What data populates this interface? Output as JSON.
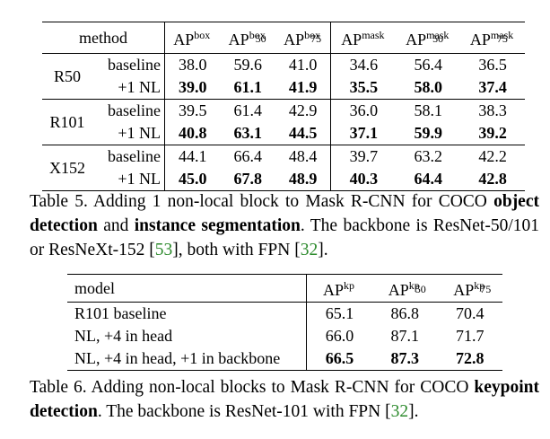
{
  "table5": {
    "header": {
      "method": "method",
      "ap": "AP",
      "box": "box",
      "mask": "mask",
      "s50": "50",
      "s75": "75"
    },
    "groups": [
      {
        "name": "R50",
        "baseline": {
          "label": "baseline",
          "v": [
            "38.0",
            "59.6",
            "41.0",
            "34.6",
            "56.4",
            "36.5"
          ]
        },
        "nl": {
          "label": "+1 NL",
          "v": [
            "39.0",
            "61.1",
            "41.9",
            "35.5",
            "58.0",
            "37.4"
          ]
        }
      },
      {
        "name": "R101",
        "baseline": {
          "label": "baseline",
          "v": [
            "39.5",
            "61.4",
            "42.9",
            "36.0",
            "58.1",
            "38.3"
          ]
        },
        "nl": {
          "label": "+1 NL",
          "v": [
            "40.8",
            "63.1",
            "44.5",
            "37.1",
            "59.9",
            "39.2"
          ]
        }
      },
      {
        "name": "X152",
        "baseline": {
          "label": "baseline",
          "v": [
            "44.1",
            "66.4",
            "48.4",
            "39.7",
            "63.2",
            "42.2"
          ]
        },
        "nl": {
          "label": "+1 NL",
          "v": [
            "45.0",
            "67.8",
            "48.9",
            "40.3",
            "64.4",
            "42.8"
          ]
        }
      }
    ]
  },
  "caption5": {
    "p1": "Table 5. Adding 1 non-local block to Mask R-CNN for COCO ",
    "b1": "object detection",
    "p2": " and ",
    "b2": "instance segmentation",
    "p3": ".  The backbone is ResNet-50/101 or ResNeXt-152 [",
    "c1": "53",
    "p4": "], both with FPN [",
    "c2": "32",
    "p5": "]."
  },
  "table6": {
    "header": {
      "model": "model",
      "ap": "AP",
      "kp": "kp",
      "s50": "50",
      "s75": "75"
    },
    "rows": [
      {
        "model": "R101 baseline",
        "v": [
          "65.1",
          "86.8",
          "70.4"
        ]
      },
      {
        "model": "NL, +4 in head",
        "v": [
          "66.0",
          "87.1",
          "71.7"
        ]
      },
      {
        "model": "NL, +4 in head, +1 in backbone",
        "v": [
          "66.5",
          "87.3",
          "72.8"
        ]
      }
    ]
  },
  "caption6": {
    "p1": "Table 6. Adding non-local blocks to Mask R-CNN for COCO ",
    "b1": "keypoint detection",
    "p2": ". The backbone is ResNet-101 with FPN [",
    "c1": "32",
    "p3": "]."
  }
}
